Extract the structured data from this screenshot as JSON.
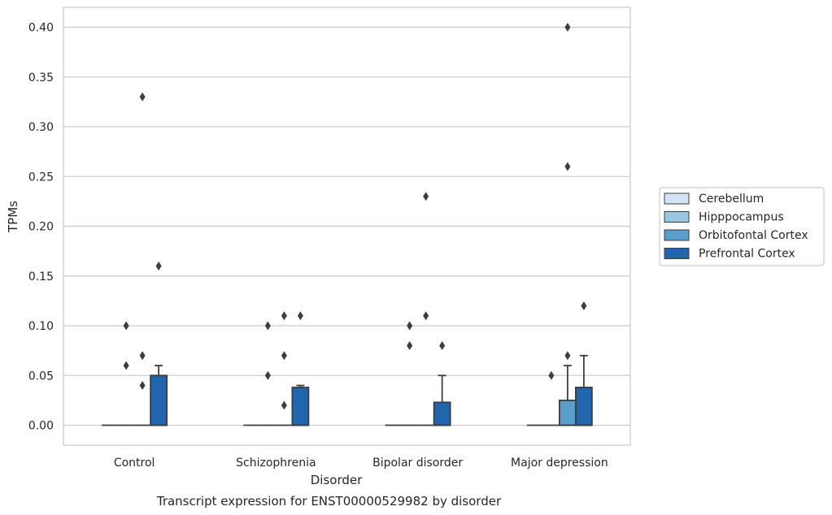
{
  "chart_data": {
    "type": "box",
    "title": "",
    "caption": "Transcript expression for ENST00000529982 by disorder",
    "xlabel": "Disorder",
    "ylabel": "TPMs",
    "ylim": [
      -0.02,
      0.42
    ],
    "yticks": [
      "0.00",
      "0.05",
      "0.10",
      "0.15",
      "0.20",
      "0.25",
      "0.30",
      "0.35",
      "0.40"
    ],
    "grid": true,
    "legend_position": "right",
    "categories": [
      "Control",
      "Schizophrenia",
      "Bipolar disorder",
      "Major depression"
    ],
    "series": [
      {
        "name": "Cerebellum",
        "color": "#d2e3f3",
        "boxes": [
          {
            "q1": 0,
            "median": 0,
            "q3": 0,
            "whisker_low": 0,
            "whisker_high": 0,
            "outliers": []
          },
          {
            "q1": 0,
            "median": 0,
            "q3": 0,
            "whisker_low": 0,
            "whisker_high": 0,
            "outliers": []
          },
          {
            "q1": 0,
            "median": 0,
            "q3": 0,
            "whisker_low": 0,
            "whisker_high": 0,
            "outliers": []
          },
          {
            "q1": 0,
            "median": 0,
            "q3": 0,
            "whisker_low": 0,
            "whisker_high": 0,
            "outliers": []
          }
        ]
      },
      {
        "name": "Hipppocampus",
        "color": "#9ac8e0",
        "boxes": [
          {
            "q1": 0,
            "median": 0,
            "q3": 0,
            "whisker_low": 0,
            "whisker_high": 0,
            "outliers": [
              0.1,
              0.06
            ]
          },
          {
            "q1": 0,
            "median": 0,
            "q3": 0,
            "whisker_low": 0,
            "whisker_high": 0,
            "outliers": [
              0.1,
              0.05
            ]
          },
          {
            "q1": 0,
            "median": 0,
            "q3": 0,
            "whisker_low": 0,
            "whisker_high": 0,
            "outliers": [
              0.1,
              0.08
            ]
          },
          {
            "q1": 0,
            "median": 0,
            "q3": 0,
            "whisker_low": 0,
            "whisker_high": 0,
            "outliers": [
              0.05
            ]
          }
        ]
      },
      {
        "name": "Orbitofontal Cortex",
        "color": "#5a9ecc",
        "boxes": [
          {
            "q1": 0,
            "median": 0,
            "q3": 0,
            "whisker_low": 0,
            "whisker_high": 0,
            "outliers": [
              0.33,
              0.07,
              0.04
            ]
          },
          {
            "q1": 0,
            "median": 0,
            "q3": 0,
            "whisker_low": 0,
            "whisker_high": 0,
            "outliers": [
              0.11,
              0.07,
              0.02
            ]
          },
          {
            "q1": 0,
            "median": 0,
            "q3": 0,
            "whisker_low": 0,
            "whisker_high": 0,
            "outliers": [
              0.23,
              0.11
            ]
          },
          {
            "q1": 0,
            "median": 0,
            "q3": 0.025,
            "whisker_low": 0,
            "whisker_high": 0.06,
            "outliers": [
              0.4,
              0.26,
              0.07
            ]
          }
        ]
      },
      {
        "name": "Prefrontal Cortex",
        "color": "#2166ac",
        "boxes": [
          {
            "q1": 0,
            "median": 0,
            "q3": 0.05,
            "whisker_low": 0,
            "whisker_high": 0.06,
            "outliers": [
              0.16
            ]
          },
          {
            "q1": 0,
            "median": 0,
            "q3": 0.038,
            "whisker_low": 0,
            "whisker_high": 0.04,
            "outliers": [
              0.11
            ]
          },
          {
            "q1": 0,
            "median": 0,
            "q3": 0.023,
            "whisker_low": 0,
            "whisker_high": 0.05,
            "outliers": [
              0.08
            ]
          },
          {
            "q1": 0,
            "median": 0,
            "q3": 0.038,
            "whisker_low": 0,
            "whisker_high": 0.07,
            "outliers": [
              0.12
            ]
          }
        ]
      }
    ]
  }
}
